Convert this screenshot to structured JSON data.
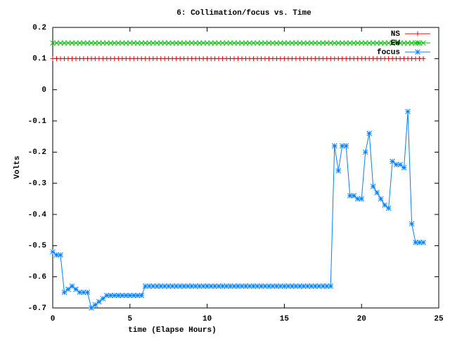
{
  "chart_data": {
    "type": "line",
    "title": "6: Collimation/focus vs. Time",
    "xlabel": "time (Elapse Hours)",
    "ylabel": "Volts",
    "x": [
      0,
      0.25,
      0.5,
      0.75,
      1,
      1.25,
      1.5,
      1.75,
      2,
      2.25,
      2.5,
      2.75,
      3,
      3.25,
      3.5,
      3.75,
      4,
      4.25,
      4.5,
      4.75,
      5,
      5.25,
      5.5,
      5.75,
      6,
      6.25,
      6.5,
      6.75,
      7,
      7.25,
      7.5,
      7.75,
      8,
      8.25,
      8.5,
      8.75,
      9,
      9.25,
      9.5,
      9.75,
      10,
      10.25,
      10.5,
      10.75,
      11,
      11.25,
      11.5,
      11.75,
      12,
      12.25,
      12.5,
      12.75,
      13,
      13.25,
      13.5,
      13.75,
      14,
      14.25,
      14.5,
      14.75,
      15,
      15.25,
      15.5,
      15.75,
      16,
      16.25,
      16.5,
      16.75,
      17,
      17.25,
      17.5,
      17.75,
      18,
      18.25,
      18.5,
      18.75,
      19,
      19.25,
      19.5,
      19.75,
      20,
      20.25,
      20.5,
      20.75,
      21,
      21.25,
      21.5,
      21.75,
      22,
      22.25,
      22.5,
      22.75,
      23,
      23.25,
      23.5,
      23.75,
      24
    ],
    "series": [
      {
        "name": "NS",
        "color": "#ff0000",
        "marker": "plus",
        "values": [
          0.1,
          0.1,
          0.1,
          0.1,
          0.1,
          0.1,
          0.1,
          0.1,
          0.1,
          0.1,
          0.1,
          0.1,
          0.1,
          0.1,
          0.1,
          0.1,
          0.1,
          0.1,
          0.1,
          0.1,
          0.1,
          0.1,
          0.1,
          0.1,
          0.1,
          0.1,
          0.1,
          0.1,
          0.1,
          0.1,
          0.1,
          0.1,
          0.1,
          0.1,
          0.1,
          0.1,
          0.1,
          0.1,
          0.1,
          0.1,
          0.1,
          0.1,
          0.1,
          0.1,
          0.1,
          0.1,
          0.1,
          0.1,
          0.1,
          0.1,
          0.1,
          0.1,
          0.1,
          0.1,
          0.1,
          0.1,
          0.1,
          0.1,
          0.1,
          0.1,
          0.1,
          0.1,
          0.1,
          0.1,
          0.1,
          0.1,
          0.1,
          0.1,
          0.1,
          0.1,
          0.1,
          0.1,
          0.1,
          0.1,
          0.1,
          0.1,
          0.1,
          0.1,
          0.1,
          0.1,
          0.1,
          0.1,
          0.1,
          0.1,
          0.1,
          0.1,
          0.1,
          0.1,
          0.1,
          0.1,
          0.1,
          0.1,
          0.1,
          0.1,
          0.1,
          0.1,
          0.1
        ]
      },
      {
        "name": "EW",
        "color": "#00c000",
        "marker": "cross",
        "values": [
          0.15,
          0.15,
          0.15,
          0.15,
          0.15,
          0.15,
          0.15,
          0.15,
          0.15,
          0.15,
          0.15,
          0.15,
          0.15,
          0.15,
          0.15,
          0.15,
          0.15,
          0.15,
          0.15,
          0.15,
          0.15,
          0.15,
          0.15,
          0.15,
          0.15,
          0.15,
          0.15,
          0.15,
          0.15,
          0.15,
          0.15,
          0.15,
          0.15,
          0.15,
          0.15,
          0.15,
          0.15,
          0.15,
          0.15,
          0.15,
          0.15,
          0.15,
          0.15,
          0.15,
          0.15,
          0.15,
          0.15,
          0.15,
          0.15,
          0.15,
          0.15,
          0.15,
          0.15,
          0.15,
          0.15,
          0.15,
          0.15,
          0.15,
          0.15,
          0.15,
          0.15,
          0.15,
          0.15,
          0.15,
          0.15,
          0.15,
          0.15,
          0.15,
          0.15,
          0.15,
          0.15,
          0.15,
          0.15,
          0.15,
          0.15,
          0.15,
          0.15,
          0.15,
          0.15,
          0.15,
          0.15,
          0.15,
          0.15,
          0.15,
          0.15,
          0.15,
          0.15,
          0.15,
          0.15,
          0.15,
          0.15,
          0.15,
          0.15,
          0.15,
          0.15,
          0.15,
          0.15
        ]
      },
      {
        "name": "focus",
        "color": "#0080ff",
        "marker": "star",
        "values": [
          -0.52,
          -0.53,
          -0.53,
          -0.65,
          -0.64,
          -0.63,
          -0.64,
          -0.65,
          -0.65,
          -0.65,
          -0.7,
          -0.69,
          -0.68,
          -0.67,
          -0.66,
          -0.66,
          -0.66,
          -0.66,
          -0.66,
          -0.66,
          -0.66,
          -0.66,
          -0.66,
          -0.66,
          -0.63,
          -0.63,
          -0.63,
          -0.63,
          -0.63,
          -0.63,
          -0.63,
          -0.63,
          -0.63,
          -0.63,
          -0.63,
          -0.63,
          -0.63,
          -0.63,
          -0.63,
          -0.63,
          -0.63,
          -0.63,
          -0.63,
          -0.63,
          -0.63,
          -0.63,
          -0.63,
          -0.63,
          -0.63,
          -0.63,
          -0.63,
          -0.63,
          -0.63,
          -0.63,
          -0.63,
          -0.63,
          -0.63,
          -0.63,
          -0.63,
          -0.63,
          -0.63,
          -0.63,
          -0.63,
          -0.63,
          -0.63,
          -0.63,
          -0.63,
          -0.63,
          -0.63,
          -0.63,
          -0.63,
          -0.63,
          -0.63,
          -0.18,
          -0.26,
          -0.18,
          -0.18,
          -0.34,
          -0.34,
          -0.35,
          -0.35,
          -0.2,
          -0.14,
          -0.31,
          -0.33,
          -0.35,
          -0.37,
          -0.38,
          -0.23,
          -0.24,
          -0.24,
          -0.25,
          -0.07,
          -0.43,
          -0.49,
          -0.49,
          -0.49
        ]
      }
    ],
    "xlim": [
      0,
      25
    ],
    "xticks": [
      0,
      5,
      10,
      15,
      20,
      25
    ],
    "ylim": [
      -0.7,
      0.2
    ],
    "yticks": [
      -0.7,
      -0.6,
      -0.5,
      -0.4,
      -0.3,
      -0.2,
      -0.1,
      0,
      0.1,
      0.2
    ],
    "legend": "top-right"
  }
}
